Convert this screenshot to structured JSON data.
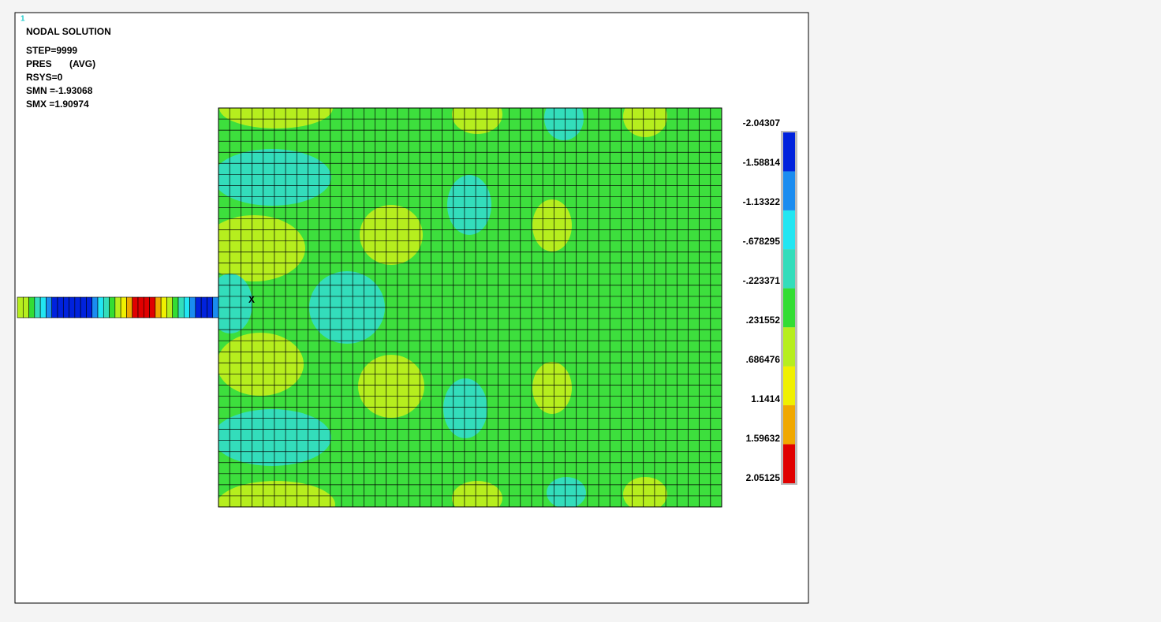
{
  "window_number": "1",
  "info": {
    "title": "NODAL SOLUTION",
    "step": "STEP=9999",
    "item": "PRES",
    "avg": "(AVG)",
    "rsys": "RSYS=0",
    "smn": "SMN =-1.93068",
    "smx": "SMX =1.90974"
  },
  "axis_marker": "X",
  "legend": {
    "labels": [
      "-2.04307",
      "-1.58814",
      "-1.13322",
      "-.678295",
      "-.223371",
      ".231552",
      ".686476",
      "1.1414",
      "1.59632",
      "2.05125"
    ],
    "colors": [
      "#0022dd",
      "#1a8cf0",
      "#22e6f2",
      "#33ddbb",
      "#33dd33",
      "#b6ee1e",
      "#f0f000",
      "#f0a800",
      "#e00000"
    ]
  }
}
